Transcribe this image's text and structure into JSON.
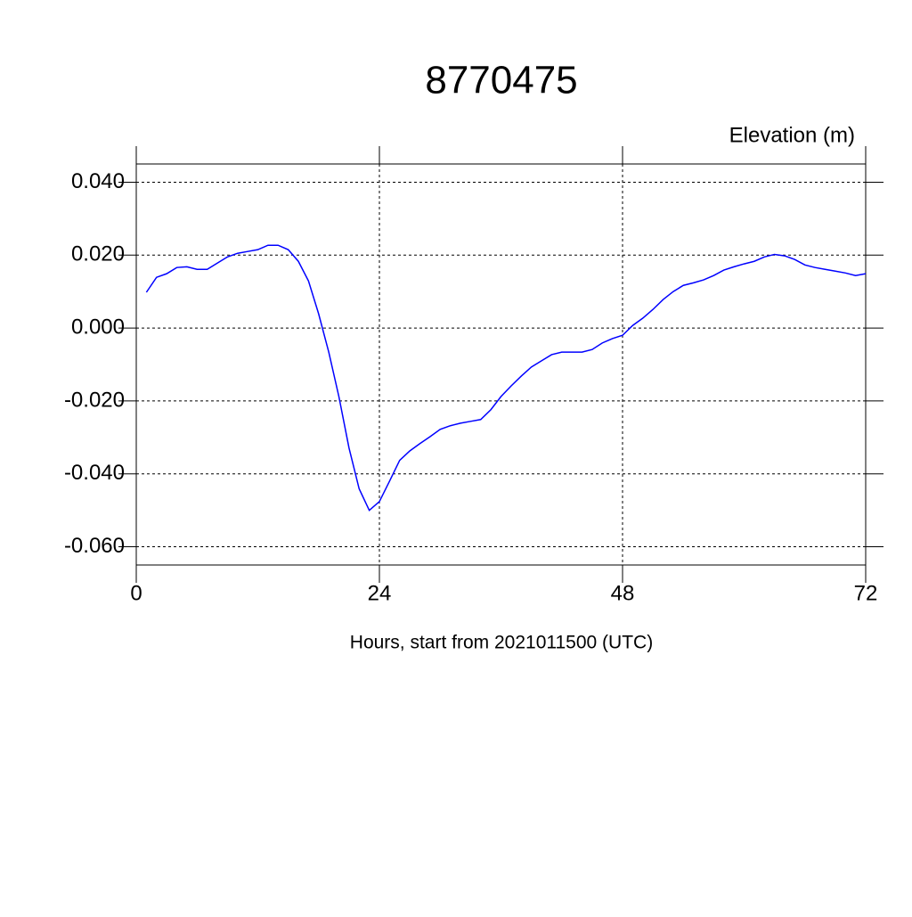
{
  "chart_data": {
    "type": "line",
    "title": "8770475",
    "subtitle": "Elevation (m)",
    "xlabel": "Hours, start from 2021011500 (UTC)",
    "x": [
      1,
      2,
      3,
      4,
      5,
      6,
      7,
      8,
      9,
      10,
      11,
      12,
      13,
      14,
      15,
      16,
      17,
      18,
      19,
      20,
      21,
      22,
      23,
      24,
      25,
      26,
      27,
      28,
      29,
      30,
      31,
      32,
      33,
      34,
      35,
      36,
      37,
      38,
      39,
      40,
      41,
      42,
      43,
      44,
      45,
      46,
      47,
      48,
      49,
      50,
      51,
      52,
      53,
      54,
      55,
      56,
      57,
      58,
      59,
      60,
      61,
      62,
      63,
      64,
      65,
      66,
      67,
      68,
      69,
      70,
      71,
      72
    ],
    "series": [
      {
        "name": "Elevation",
        "color": "#0000ff",
        "values": [
          0.0098,
          0.0139,
          0.0149,
          0.0166,
          0.0168,
          0.0161,
          0.0161,
          0.0178,
          0.0195,
          0.0205,
          0.021,
          0.0215,
          0.0227,
          0.0227,
          0.0215,
          0.0183,
          0.0129,
          0.0039,
          -0.0066,
          -0.0188,
          -0.0329,
          -0.0441,
          -0.05,
          -0.0476,
          -0.042,
          -0.0363,
          -0.0337,
          -0.0317,
          -0.0298,
          -0.0278,
          -0.0268,
          -0.0261,
          -0.0256,
          -0.0251,
          -0.0224,
          -0.0188,
          -0.0159,
          -0.0132,
          -0.0107,
          -0.009,
          -0.0073,
          -0.0066,
          -0.0066,
          -0.0066,
          -0.0059,
          -0.0041,
          -0.0029,
          -0.002,
          0.0007,
          0.0027,
          0.0051,
          0.0078,
          0.01,
          0.0117,
          0.0124,
          0.0132,
          0.0144,
          0.0159,
          0.0168,
          0.0176,
          0.0183,
          0.0195,
          0.0202,
          0.0198,
          0.0188,
          0.0173,
          0.0166,
          0.0161,
          0.0156,
          0.0151,
          0.0144,
          0.0149
        ]
      }
    ],
    "xlim": [
      0,
      72
    ],
    "xticks": [
      0,
      24,
      48,
      72
    ],
    "ylim": [
      -0.065,
      0.045
    ],
    "yticks": [
      {
        "value": -0.06,
        "label": "-0.060"
      },
      {
        "value": -0.04,
        "label": "-0.040"
      },
      {
        "value": -0.02,
        "label": "-0.020"
      },
      {
        "value": 0,
        "label": "0.000"
      },
      {
        "value": 0.02,
        "label": "0.020"
      },
      {
        "value": 0.04,
        "label": "0.040"
      }
    ],
    "grid": true
  }
}
